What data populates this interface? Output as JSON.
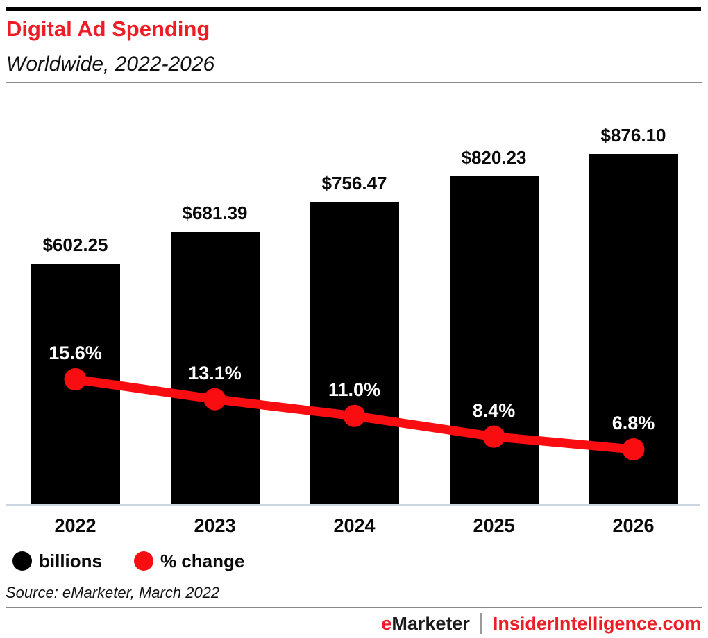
{
  "accent": {
    "red_text": "#ee1c25",
    "red_line": "#f90d10",
    "bar_color": "#000000",
    "axis_line_color": "#ccd6e2"
  },
  "header": {
    "title": "Digital Ad Spending",
    "subtitle": "Worldwide, 2022-2026"
  },
  "chart_data": {
    "type": "bar",
    "title": "Digital Ad Spending",
    "subtitle": "Worldwide, 2022-2026",
    "categories": [
      "2022",
      "2023",
      "2024",
      "2025",
      "2026"
    ],
    "series": [
      {
        "name": "billions",
        "type": "bar",
        "color": "#000000",
        "values": [
          602.25,
          681.39,
          756.47,
          820.23,
          876.1
        ],
        "labels": [
          "$602.25",
          "$681.39",
          "$756.47",
          "$820.23",
          "$876.10"
        ]
      },
      {
        "name": "% change",
        "type": "line",
        "color": "#f90d10",
        "values": [
          15.6,
          13.1,
          11.0,
          8.4,
          6.8
        ],
        "labels": [
          "15.6%",
          "13.1%",
          "11.0%",
          "8.4%",
          "6.8%"
        ]
      }
    ],
    "xlabel": "",
    "ylabel": "",
    "bar_axis_range": [
      0,
      876.1
    ],
    "grid": false,
    "legend_position": "bottom-left"
  },
  "legend": {
    "items": [
      {
        "label": "billions",
        "color": "#000000"
      },
      {
        "label": "% change",
        "color": "#f90d10"
      }
    ]
  },
  "source_note": "Source: eMarketer, March 2022",
  "footer": {
    "brand_first_letter": "e",
    "brand_rest": "Marketer",
    "separator": "|",
    "site": "InsiderIntelligence.com"
  }
}
